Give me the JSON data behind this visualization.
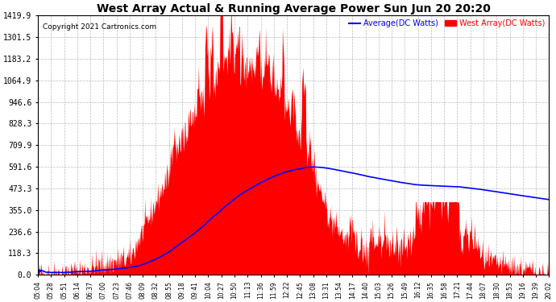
{
  "title": "West Array Actual & Running Average Power Sun Jun 20 20:20",
  "copyright": "Copyright 2021 Cartronics.com",
  "legend_avg": "Average(DC Watts)",
  "legend_west": "West Array(DC Watts)",
  "avg_color": "blue",
  "west_color": "red",
  "fill_color": "red",
  "background_color": "white",
  "grid_color": "#aaaaaa",
  "yticks": [
    0.0,
    118.3,
    236.6,
    355.0,
    473.3,
    591.6,
    709.9,
    828.3,
    946.6,
    1064.9,
    1183.2,
    1301.5,
    1419.9
  ],
  "ymax": 1419.9,
  "ymin": 0.0,
  "xtick_labels": [
    "05:04",
    "05:28",
    "05:51",
    "06:14",
    "06:37",
    "07:00",
    "07:23",
    "07:46",
    "08:09",
    "08:32",
    "08:55",
    "09:18",
    "09:41",
    "10:04",
    "10:27",
    "10:50",
    "11:13",
    "11:36",
    "11:59",
    "12:22",
    "12:45",
    "13:08",
    "13:31",
    "13:54",
    "14:17",
    "14:40",
    "15:03",
    "15:26",
    "15:49",
    "16:12",
    "16:35",
    "16:58",
    "17:21",
    "17:44",
    "18:07",
    "18:30",
    "18:53",
    "19:16",
    "19:39",
    "20:02"
  ]
}
